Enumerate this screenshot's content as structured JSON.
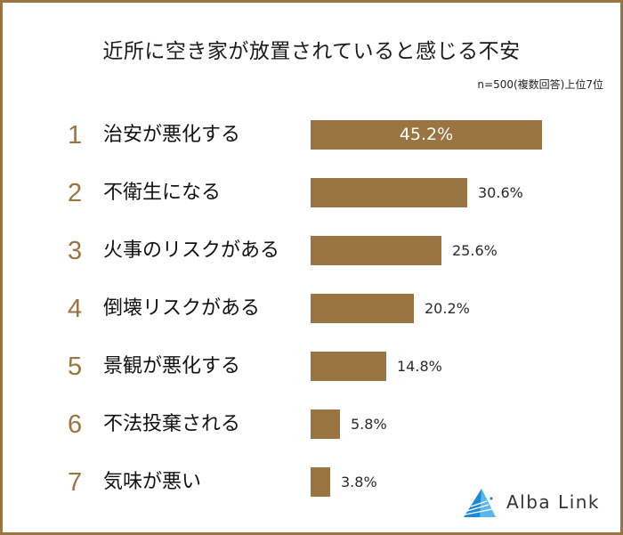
{
  "header": {
    "title": "近所に空き家が放置されていると感じる不安",
    "note": "n=500(複数回答)上位7位"
  },
  "colors": {
    "bar": "#9a7542",
    "rank": "#9a7542",
    "border": "#9a7542",
    "logo_blue": "#1e88d6"
  },
  "rows": [
    {
      "rank": "1",
      "label": "治安が悪化する",
      "value_label": "45.2%"
    },
    {
      "rank": "2",
      "label": "不衛生になる",
      "value_label": "30.6%"
    },
    {
      "rank": "3",
      "label": "火事のリスクがある",
      "value_label": "25.6%"
    },
    {
      "rank": "4",
      "label": "倒壊リスクがある",
      "value_label": "20.2%"
    },
    {
      "rank": "5",
      "label": "景観が悪化する",
      "value_label": "14.8%"
    },
    {
      "rank": "6",
      "label": "不法投棄される",
      "value_label": "5.8%"
    },
    {
      "rank": "7",
      "label": "気味が悪い",
      "value_label": "3.8%"
    }
  ],
  "logo": {
    "text": "Alba Link",
    "icon": "alba-link-triangle-logo-icon"
  },
  "chart_data": {
    "type": "bar",
    "orientation": "horizontal",
    "title": "近所に空き家が放置されていると感じる不安",
    "subtitle": "n=500(複数回答)上位7位",
    "categories": [
      "治安が悪化する",
      "不衛生になる",
      "火事のリスクがある",
      "倒壊リスクがある",
      "景観が悪化する",
      "不法投棄される",
      "気味が悪い"
    ],
    "ranks": [
      1,
      2,
      3,
      4,
      5,
      6,
      7
    ],
    "values": [
      45.2,
      30.6,
      25.6,
      20.2,
      14.8,
      5.8,
      3.8
    ],
    "unit": "%",
    "xlabel": "",
    "ylabel": "",
    "grid": false,
    "legend": null,
    "data_labels": true
  }
}
